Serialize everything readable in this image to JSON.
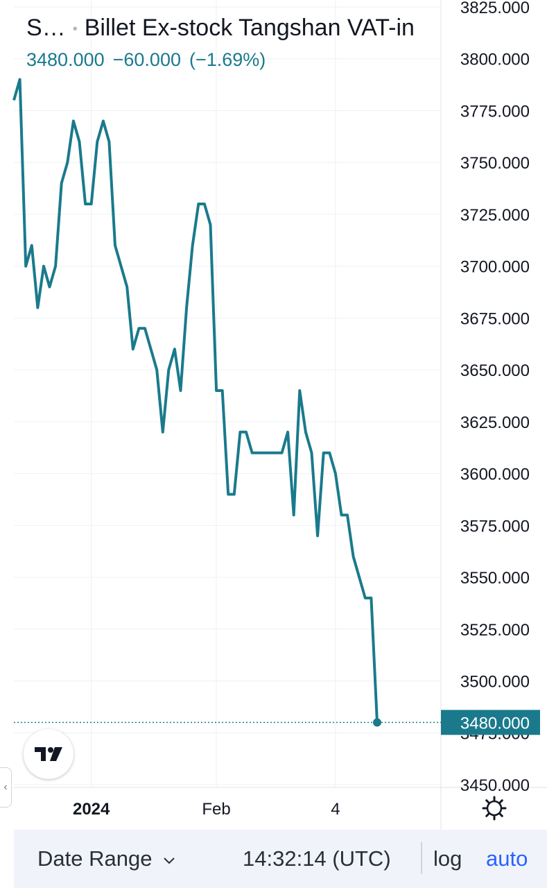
{
  "header": {
    "symbol_short": "S…",
    "title": "Billet Ex-stock Tangshan VAT-in",
    "last": "3480.000",
    "change": "−60.000",
    "change_pct": "(−1.69%)"
  },
  "time_axis": {
    "labels": [
      {
        "text": "2024",
        "bold": true,
        "index": 13
      },
      {
        "text": "Feb",
        "bold": false,
        "index": 34
      },
      {
        "text": "4",
        "bold": false,
        "index": 54
      }
    ]
  },
  "bottom_bar": {
    "date_range_label": "Date Range",
    "clock": "14:32:14 (UTC)",
    "log_label": "log",
    "auto_label": "auto"
  },
  "icons": {
    "settings": "gear-icon",
    "chevron": "chevron-down-icon",
    "logo": "tradingview-logo",
    "handle": "chevron-left-icon"
  },
  "colors": {
    "line": "#1a7a8c",
    "price_label_bg": "#1a7a8c",
    "accent_blue": "#2962ff",
    "text": "#131722",
    "grid": "#eef0f3"
  },
  "chart_data": {
    "type": "line",
    "title": "Billet Ex-stock Tangshan VAT-in",
    "ylim": [
      3441,
      3830
    ],
    "y_ticks": [
      "3825.000",
      "3800.000",
      "3775.000",
      "3750.000",
      "3725.000",
      "3700.000",
      "3675.000",
      "3650.000",
      "3625.000",
      "3600.000",
      "3575.000",
      "3550.000",
      "3525.000",
      "3500.000",
      "3475.000",
      "3450.000"
    ],
    "last_price_label": "3480.000",
    "series": [
      {
        "values": [
          3780,
          3790,
          3700,
          3710,
          3680,
          3700,
          3690,
          3700,
          3740,
          3750,
          3770,
          3760,
          3730,
          3730,
          3760,
          3770,
          3760,
          3710,
          3700,
          3690,
          3660,
          3670,
          3670,
          3660,
          3650,
          3620,
          3650,
          3660,
          3640,
          3680,
          3710,
          3730,
          3730,
          3720,
          3640,
          3640,
          3590,
          3590,
          3620,
          3620,
          3610,
          3610,
          3610,
          3610,
          3610,
          3610,
          3620,
          3580,
          3640,
          3620,
          3610,
          3570,
          3610,
          3610,
          3600,
          3580,
          3580,
          3560,
          3550,
          3540,
          3540,
          3480
        ]
      }
    ]
  }
}
